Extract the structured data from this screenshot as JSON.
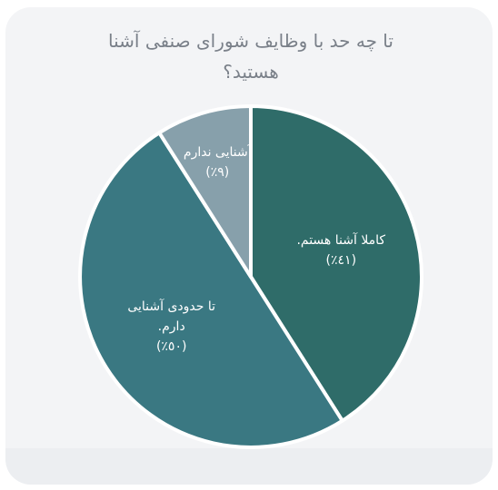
{
  "chart_data": {
    "type": "pie",
    "title": "تا چه حد با وظایف شورای صنفی آشنا هستید؟",
    "categories": [
      "کاملا آشنا هستم.",
      "تا حدودی آشنایی دارم.",
      "آشنایی ندارم"
    ],
    "values": [
      41,
      50,
      9
    ],
    "value_labels": [
      "(٤١٪)",
      "(٥٠٪)",
      "(٩٪)"
    ],
    "colors": [
      "#2f6c69",
      "#3a7882",
      "#87a0ab"
    ]
  }
}
